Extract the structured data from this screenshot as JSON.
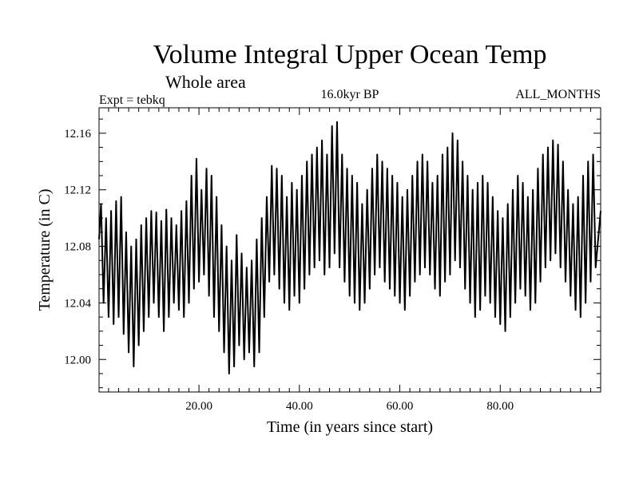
{
  "chart_data": {
    "type": "line",
    "title": "Volume Integral Upper Ocean Temp",
    "subtitle": "Whole area",
    "annotations": {
      "experiment": "Expt = tebkq",
      "period": "16.0kyr BP",
      "months": "ALL_MONTHS"
    },
    "xlabel": "Time (in years since start)",
    "ylabel": "Temperature (in C)",
    "xlim": [
      0.1,
      100
    ],
    "ylim": [
      11.977,
      12.178
    ],
    "xticks": [
      20,
      40,
      60,
      80
    ],
    "xtick_labels": [
      "20.00",
      "40.00",
      "60.00",
      "80.00"
    ],
    "yticks": [
      12.0,
      12.04,
      12.08,
      12.12,
      12.16
    ],
    "ytick_labels": [
      "12.00",
      "12.04",
      "12.08",
      "12.12",
      "12.16"
    ],
    "grid": false,
    "series": [
      {
        "name": "Temperature",
        "color": "#000000",
        "sampling": "one annual cycle per year: annual maximum and annual minimum",
        "years": [
          1,
          2,
          3,
          4,
          5,
          6,
          7,
          8,
          9,
          10,
          11,
          12,
          13,
          14,
          15,
          16,
          17,
          18,
          19,
          20,
          21,
          22,
          23,
          24,
          25,
          26,
          27,
          28,
          29,
          30,
          31,
          32,
          33,
          34,
          35,
          36,
          37,
          38,
          39,
          40,
          41,
          42,
          43,
          44,
          45,
          46,
          47,
          48,
          49,
          50,
          51,
          52,
          53,
          54,
          55,
          56,
          57,
          58,
          59,
          60,
          61,
          62,
          63,
          64,
          65,
          66,
          67,
          68,
          69,
          70,
          71,
          72,
          73,
          74,
          75,
          76,
          77,
          78,
          79,
          80,
          81,
          82,
          83,
          84,
          85,
          86,
          87,
          88,
          89,
          90,
          91,
          92,
          93,
          94,
          95,
          96,
          97,
          98,
          99
        ],
        "annual_max": [
          12.11,
          12.1,
          12.105,
          12.112,
          12.115,
          12.09,
          12.08,
          12.085,
          12.095,
          12.1,
          12.105,
          12.104,
          12.098,
          12.106,
          12.1,
          12.095,
          12.105,
          12.112,
          12.13,
          12.142,
          12.12,
          12.135,
          12.13,
          12.115,
          12.095,
          12.08,
          12.07,
          12.088,
          12.075,
          12.065,
          12.07,
          12.085,
          12.1,
          12.115,
          12.137,
          12.135,
          12.13,
          12.115,
          12.125,
          12.12,
          12.13,
          12.14,
          12.145,
          12.15,
          12.155,
          12.145,
          12.165,
          12.168,
          12.145,
          12.135,
          12.13,
          12.125,
          12.11,
          12.12,
          12.135,
          12.145,
          12.14,
          12.135,
          12.13,
          12.125,
          12.115,
          12.12,
          12.13,
          12.14,
          12.145,
          12.14,
          12.125,
          12.13,
          12.145,
          12.15,
          12.16,
          12.155,
          12.14,
          12.13,
          12.12,
          12.125,
          12.13,
          12.125,
          12.115,
          12.105,
          12.1,
          12.11,
          12.12,
          12.13,
          12.125,
          12.115,
          12.12,
          12.135,
          12.145,
          12.15,
          12.155,
          12.152,
          12.14,
          12.12,
          12.11,
          12.115,
          12.13,
          12.14,
          12.145
        ],
        "annual_min": [
          12.04,
          12.03,
          12.025,
          12.03,
          12.018,
          12.005,
          11.995,
          12.01,
          12.02,
          12.03,
          12.04,
          12.03,
          12.02,
          12.03,
          12.04,
          12.035,
          12.03,
          12.04,
          12.05,
          12.055,
          12.06,
          12.045,
          12.03,
          12.02,
          12.005,
          11.99,
          11.995,
          12.01,
          12.0,
          12.005,
          11.995,
          12.005,
          12.03,
          12.055,
          12.06,
          12.05,
          12.04,
          12.035,
          12.045,
          12.04,
          12.05,
          12.06,
          12.065,
          12.07,
          12.06,
          12.065,
          12.075,
          12.065,
          12.055,
          12.045,
          12.04,
          12.035,
          12.04,
          12.05,
          12.06,
          12.065,
          12.055,
          12.05,
          12.045,
          12.04,
          12.035,
          12.045,
          12.055,
          12.06,
          12.065,
          12.06,
          12.05,
          12.045,
          12.055,
          12.06,
          12.07,
          12.065,
          12.05,
          12.04,
          12.03,
          12.035,
          12.045,
          12.04,
          12.03,
          12.025,
          12.02,
          12.03,
          12.04,
          12.05,
          12.045,
          12.035,
          12.04,
          12.055,
          12.065,
          12.07,
          12.075,
          12.065,
          12.055,
          12.045,
          12.035,
          12.03,
          12.04,
          12.055,
          12.065
        ]
      }
    ]
  }
}
